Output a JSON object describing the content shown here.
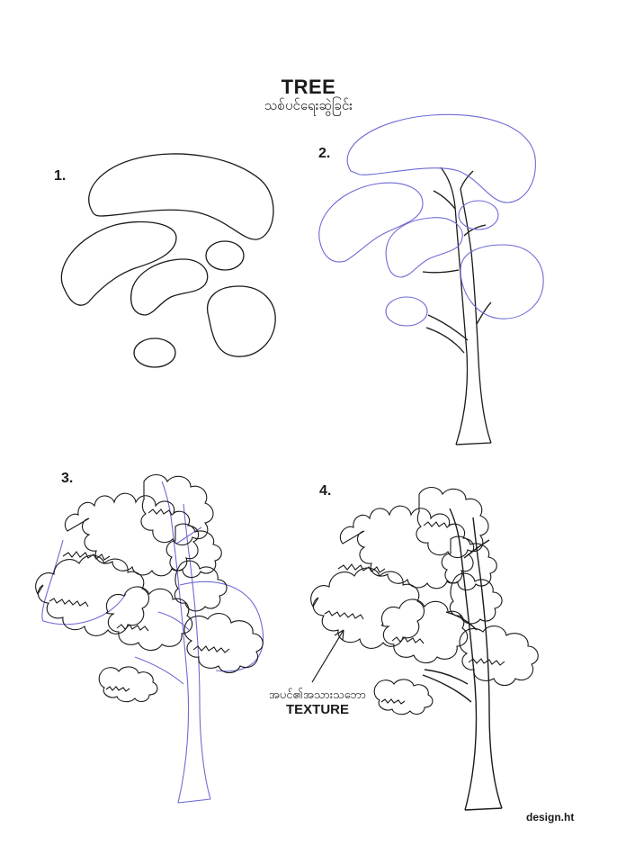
{
  "header": {
    "title": "TREE",
    "subtitle": "သစ်ပင်ရေးဆွဲခြင်း"
  },
  "steps": [
    {
      "number": "1."
    },
    {
      "number": "2."
    },
    {
      "number": "3."
    },
    {
      "number": "4."
    }
  ],
  "annotation": {
    "label_mm": "အပင်၏အသားသဘော",
    "label_en": "TEXTURE"
  },
  "credit": "design.ht",
  "colors": {
    "ink": "#1a1a1a",
    "guide": "#6e6ad4",
    "background": "#ffffff"
  }
}
